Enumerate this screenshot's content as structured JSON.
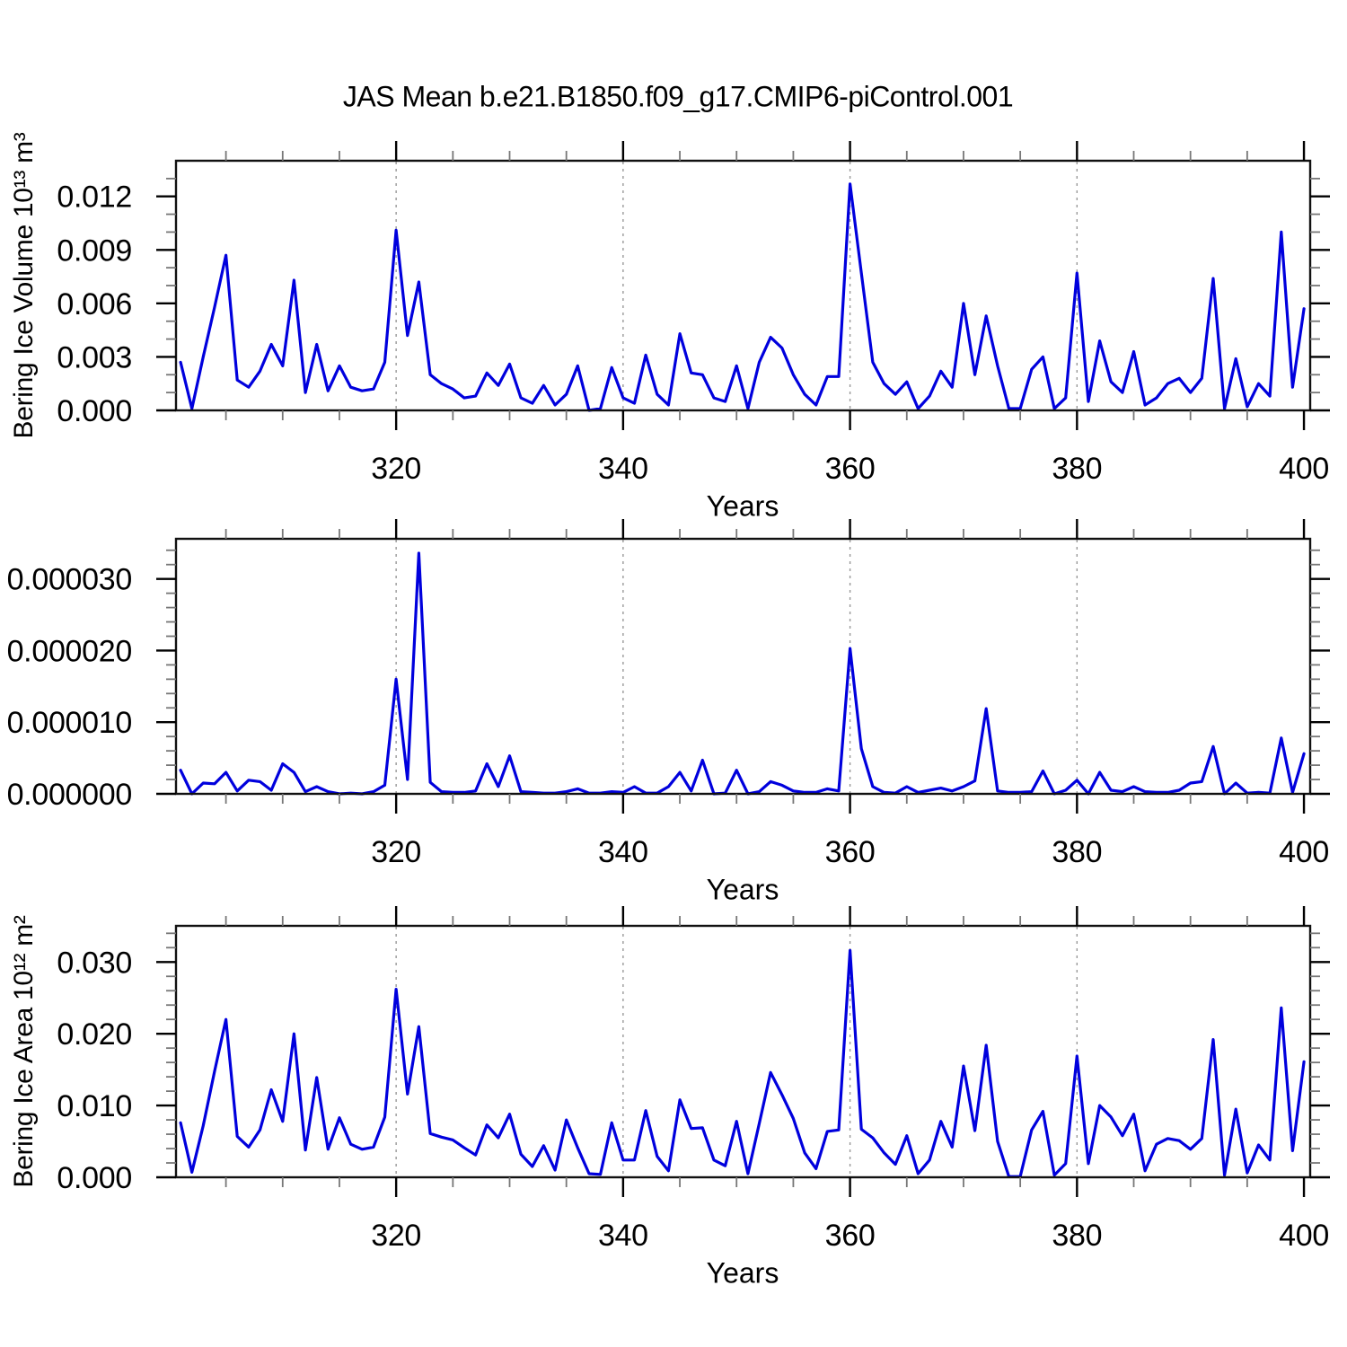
{
  "title": "JAS Mean b.e21.B1850.f09_g17.CMIP6-piControl.001",
  "colors": {
    "line": "#0000dd",
    "frame": "#111111",
    "grid": "#999999",
    "text": "#000000",
    "background": "#ffffff"
  },
  "x_axis": {
    "label": "Years",
    "start": 301,
    "end": 400,
    "step": 1,
    "ticks": [
      320,
      340,
      360,
      380,
      400
    ],
    "tick_labels": [
      "320",
      "340",
      "360",
      "380",
      "400"
    ],
    "minor_step": 5,
    "gridlines": [
      320,
      340,
      360,
      380
    ],
    "xlim": [
      300.6,
      400.55
    ]
  },
  "chart_data": [
    {
      "type": "line",
      "name": "bering-ice-volume",
      "ylabel": "Bering Ice Volume 10¹³ m³",
      "xlabel": "Years",
      "ylim": [
        0,
        0.014
      ],
      "ytick_values": [
        0.0,
        0.003,
        0.006,
        0.009,
        0.012
      ],
      "ytick_labels": [
        "0.000",
        "0.003",
        "0.006",
        "0.009",
        "0.012"
      ],
      "yminor_step": 0.001,
      "legend": "none",
      "grid": "vertical-dashed",
      "values": [
        0.0027,
        0.0001,
        0.003,
        0.0058,
        0.0087,
        0.0017,
        0.0013,
        0.0022,
        0.0037,
        0.0025,
        0.0073,
        0.001,
        0.0037,
        0.0011,
        0.0025,
        0.0013,
        0.0011,
        0.0012,
        0.0027,
        0.0101,
        0.0042,
        0.0072,
        0.002,
        0.0015,
        0.0012,
        0.0007,
        0.0008,
        0.0021,
        0.0014,
        0.0026,
        0.0007,
        0.0004,
        0.0014,
        0.0003,
        0.0009,
        0.0025,
        0.0,
        0.0001,
        0.0024,
        0.0007,
        0.0004,
        0.0031,
        0.0009,
        0.0003,
        0.0043,
        0.0021,
        0.002,
        0.0007,
        0.0005,
        0.0025,
        0.0001,
        0.0027,
        0.0041,
        0.0035,
        0.002,
        0.0009,
        0.0003,
        0.0019,
        0.0019,
        0.0127,
        0.0077,
        0.0027,
        0.0015,
        0.0009,
        0.0016,
        0.0001,
        0.0008,
        0.0022,
        0.0013,
        0.006,
        0.002,
        0.0053,
        0.0025,
        0.0001,
        0.0001,
        0.0023,
        0.003,
        0.0001,
        0.0007,
        0.0077,
        0.0005,
        0.0039,
        0.0016,
        0.001,
        0.0033,
        0.0003,
        0.0007,
        0.0015,
        0.0018,
        0.001,
        0.0018,
        0.0074,
        0.0001,
        0.0029,
        0.0002,
        0.0015,
        0.0008,
        0.01,
        0.0013,
        0.0057
      ]
    },
    {
      "type": "line",
      "name": "bering-ice-middle-series",
      "ylabel": "",
      "xlabel": "Years",
      "ylim": [
        0,
        3.56e-05
      ],
      "ytick_values": [
        0.0,
        1e-05,
        2e-05,
        3e-05
      ],
      "ytick_labels": [
        "0.000000",
        "0.000010",
        "0.000020",
        "0.000030"
      ],
      "yminor_step": 2e-06,
      "legend": "none",
      "grid": "vertical-dashed",
      "values": [
        3.3e-06,
        0.0,
        1.5e-06,
        1.4e-06,
        3e-06,
        4e-07,
        1.9e-06,
        1.7e-06,
        5e-07,
        4.2e-06,
        3e-06,
        3e-07,
        1e-06,
        3e-07,
        0.0,
        1e-07,
        0.0,
        3e-07,
        1.2e-06,
        1.6e-05,
        2e-06,
        3.36e-05,
        1.6e-06,
        3e-07,
        2e-07,
        2e-07,
        4e-07,
        4.2e-06,
        1e-06,
        5.3e-06,
        3e-07,
        2e-07,
        1e-07,
        1e-07,
        3e-07,
        7e-07,
        1e-07,
        1e-07,
        3e-07,
        2e-07,
        1e-06,
        1e-07,
        1e-07,
        1e-06,
        3e-06,
        4e-07,
        4.7e-06,
        0.0,
        1e-07,
        3.3e-06,
        0.0,
        3e-07,
        1.7e-06,
        1.2e-06,
        4e-07,
        2e-07,
        2e-07,
        7e-07,
        4e-07,
        2.03e-05,
        6.3e-06,
        1e-06,
        2e-07,
        1e-07,
        1e-06,
        2e-07,
        5e-07,
        8e-07,
        4e-07,
        1e-06,
        1.8e-06,
        1.19e-05,
        4e-07,
        2e-07,
        2e-07,
        3e-07,
        3.2e-06,
        0.0,
        5e-07,
        1.9e-06,
        0.0,
        3e-06,
        5e-07,
        3e-07,
        1e-06,
        3e-07,
        2e-07,
        2e-07,
        5e-07,
        1.5e-06,
        1.7e-06,
        6.6e-06,
        0.0,
        1.5e-06,
        1e-07,
        2e-07,
        1e-07,
        7.8e-06,
        2e-07,
        5.6e-06
      ]
    },
    {
      "type": "line",
      "name": "bering-ice-area",
      "ylabel": "Bering Ice Area 10¹² m²",
      "xlabel": "Years",
      "ylim": [
        0,
        0.03504
      ],
      "ytick_values": [
        0.0,
        0.01,
        0.02,
        0.03
      ],
      "ytick_labels": [
        "0.000",
        "0.010",
        "0.020",
        "0.030"
      ],
      "yminor_step": 0.002,
      "legend": "none",
      "grid": "vertical-dashed",
      "values": [
        0.0076,
        0.0007,
        0.0072,
        0.0148,
        0.022,
        0.0057,
        0.0042,
        0.0066,
        0.0122,
        0.0078,
        0.02,
        0.0038,
        0.0139,
        0.0039,
        0.0083,
        0.0046,
        0.0039,
        0.0042,
        0.0084,
        0.0262,
        0.0116,
        0.021,
        0.0061,
        0.0056,
        0.0052,
        0.0041,
        0.0031,
        0.0073,
        0.0055,
        0.0088,
        0.0032,
        0.0015,
        0.0044,
        0.001,
        0.008,
        0.0041,
        0.0005,
        0.0004,
        0.0076,
        0.0024,
        0.0024,
        0.0093,
        0.0029,
        0.0009,
        0.0108,
        0.0068,
        0.0069,
        0.0024,
        0.0016,
        0.0078,
        0.0005,
        0.0075,
        0.0146,
        0.0115,
        0.0082,
        0.0034,
        0.0012,
        0.0064,
        0.0066,
        0.0316,
        0.0067,
        0.0055,
        0.0034,
        0.0018,
        0.0058,
        0.0005,
        0.0024,
        0.0078,
        0.0042,
        0.0155,
        0.0065,
        0.0184,
        0.005,
        0.0001,
        0.0001,
        0.0066,
        0.0092,
        0.0003,
        0.0019,
        0.0169,
        0.0019,
        0.01,
        0.0084,
        0.0058,
        0.0088,
        0.0009,
        0.0046,
        0.0054,
        0.0051,
        0.0039,
        0.0054,
        0.0192,
        0.0003,
        0.0095,
        0.0006,
        0.0045,
        0.0024,
        0.0236,
        0.0037,
        0.0161
      ]
    }
  ]
}
